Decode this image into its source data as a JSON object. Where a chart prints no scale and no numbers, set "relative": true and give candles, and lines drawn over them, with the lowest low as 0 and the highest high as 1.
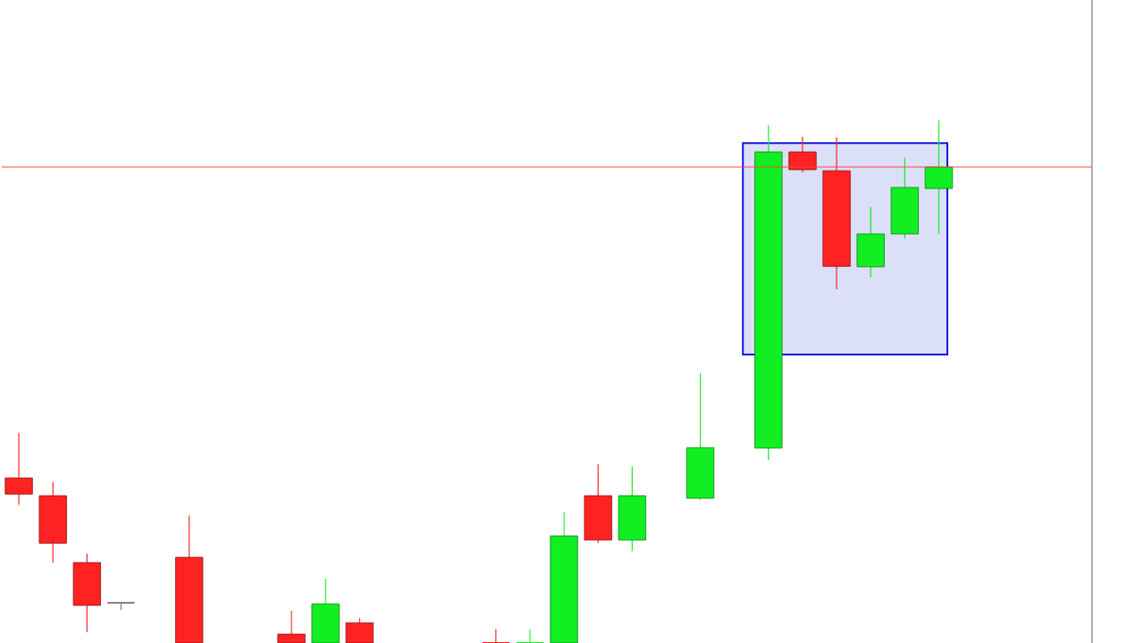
{
  "chart_data": {
    "type": "candlestick",
    "relative": true,
    "categories": [
      null,
      null,
      null,
      null,
      null,
      null,
      null,
      null,
      null,
      null,
      null,
      null,
      null,
      null,
      null,
      null,
      null,
      null,
      null,
      null,
      null,
      null,
      null,
      null,
      null,
      null,
      null,
      null,
      null,
      null,
      null,
      null
    ],
    "ohlc": [
      [
        0.316,
        0.402,
        0.265,
        0.285
      ],
      [
        0.282,
        0.308,
        0.154,
        0.191
      ],
      [
        0.154,
        0.171,
        0.021,
        0.072
      ],
      [
        0.077,
        0.077,
        0.063,
        0.077
      ],
      null,
      [
        0.164,
        0.244,
        0,
        0
      ],
      null,
      null,
      [
        0.017,
        0.062,
        0,
        0
      ],
      [
        0,
        0.123,
        0,
        0.075
      ],
      [
        0.039,
        0.048,
        0,
        0
      ],
      null,
      null,
      null,
      [
        0,
        0.027,
        0,
        0
      ],
      [
        0,
        0.026,
        0,
        0
      ],
      [
        0,
        0.251,
        0,
        0.205
      ],
      [
        0.282,
        0.342,
        0.191,
        0.197
      ],
      [
        0.197,
        0.338,
        0.176,
        0.282
      ],
      null,
      [
        0.277,
        0.516,
        0.274,
        0.374
      ],
      null,
      [
        0.373,
        0.991,
        0.35,
        0.94
      ],
      [
        0.94,
        0.969,
        0.901,
        0.906
      ],
      [
        0.904,
        0.968,
        0.677,
        0.721
      ],
      [
        0.72,
        0.834,
        0.701,
        0.783
      ],
      [
        0.783,
        0.928,
        0.774,
        0.872
      ],
      [
        0.87,
        1.0,
        0.783,
        0.911
      ],
      null,
      null,
      null,
      null
    ],
    "colors": [
      "#ff2222",
      "#ff2222",
      "#ff2222",
      "#808080",
      null,
      "#ff2222",
      null,
      null,
      "#ff2222",
      "#11ee22",
      "#ff2222",
      null,
      null,
      null,
      "#ff2222",
      "#11ee22",
      "#11ee22",
      "#ff2222",
      "#11ee22",
      null,
      "#11ee22",
      null,
      "#11ee22",
      "#ff2222",
      "#ff2222",
      "#11ee22",
      "#11ee22",
      "#11ee22",
      null,
      null,
      null,
      null
    ],
    "ref_lines": [
      {
        "axis": "y",
        "value": 0.911,
        "color": "#ff4444"
      }
    ]
  }
}
